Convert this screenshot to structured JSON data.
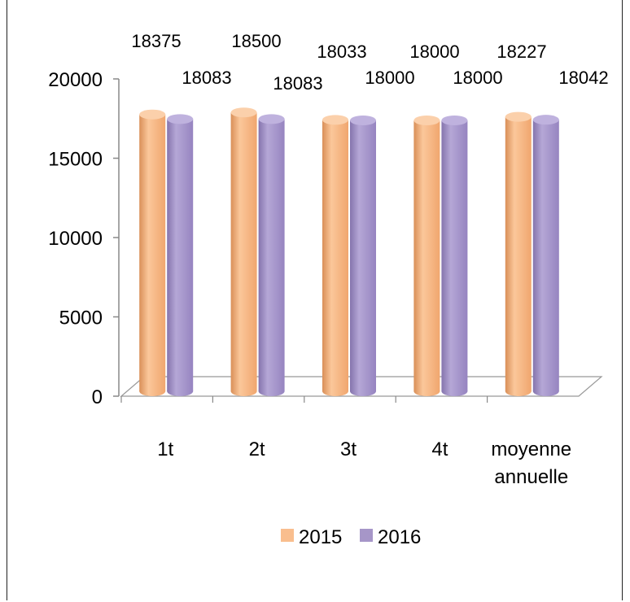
{
  "chart_data": {
    "type": "bar",
    "categories": [
      "1t",
      "2t",
      "3t",
      "4t",
      "moyenne annuelle"
    ],
    "series": [
      {
        "name": "2015",
        "values": [
          18375,
          18500,
          18033,
          18000,
          18227
        ]
      },
      {
        "name": "2016",
        "values": [
          18083,
          18083,
          18000,
          18000,
          18042
        ]
      }
    ],
    "y_ticks": [
      0,
      5000,
      10000,
      15000,
      20000
    ],
    "ylim": [
      0,
      20000
    ],
    "legend_position": "bottom",
    "style": "3d-cylinder",
    "colors": {
      "2015": "#F9BE8E",
      "2016": "#A696C8"
    }
  }
}
